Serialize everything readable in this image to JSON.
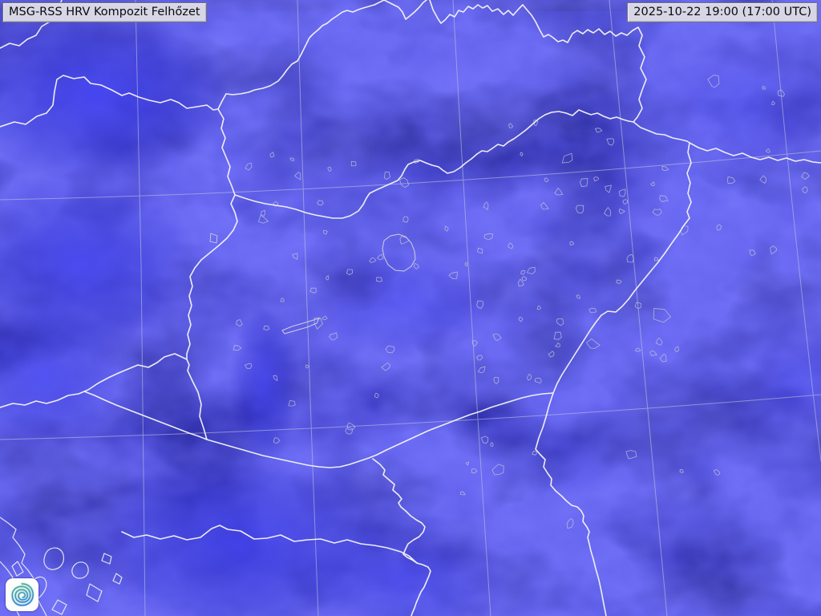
{
  "header": {
    "product_label": "MSG-RSS HRV Kompozit Felhőzet",
    "timestamp_label": "2025-10-22 19:00 (17:00 UTC)"
  },
  "map": {
    "description_visible": "night-time satellite cloud composite with country borders, settlement outlines and lat/lon graticule over Hungary",
    "colors": {
      "background_deep_blue": "#0a0a97",
      "cloud_bright_blue": "#3232e8",
      "dark_patch": "#04044a",
      "country_border": "#f4f4f6",
      "graticule": "#c3c7de",
      "settlement_outline": "#c9c9d2",
      "label_background": "#d6d6e6",
      "label_border": "#73737f",
      "label_text": "#0a0a0a"
    }
  },
  "logo": {
    "icon": "spiral-cyclone-icon",
    "background": "#fdfdfd",
    "gradient_top": "#49b18c",
    "gradient_mid": "#3a9fae",
    "gradient_bottom": "#2a7fd0"
  }
}
